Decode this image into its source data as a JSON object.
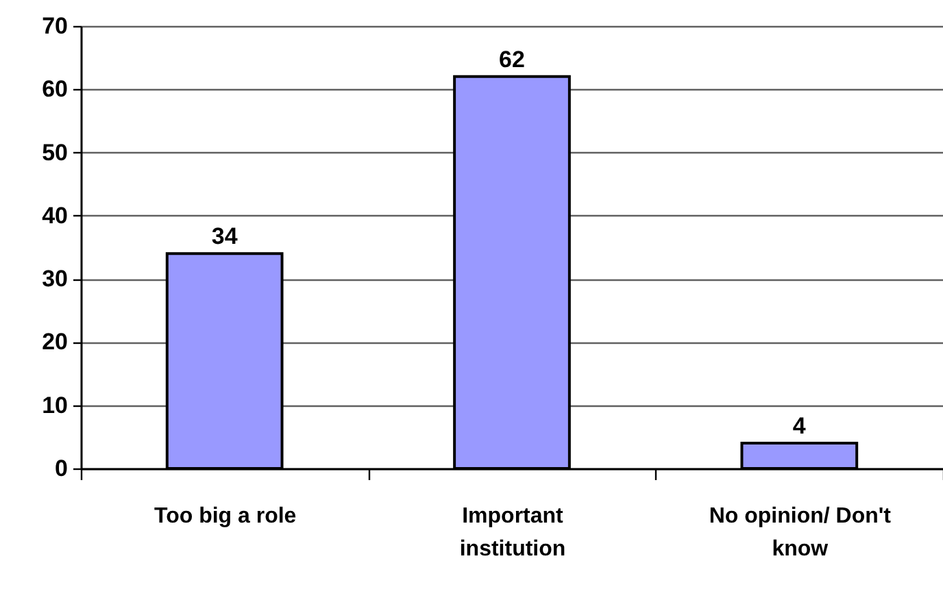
{
  "chart_data": {
    "type": "bar",
    "categories": [
      "Too big a role",
      "Important institution",
      "No opinion/ Don't know"
    ],
    "values": [
      34,
      62,
      4
    ],
    "color": "#9999ff",
    "ylim": [
      0,
      70
    ],
    "yticks": [
      0,
      10,
      20,
      30,
      40,
      50,
      60,
      70
    ],
    "grid": "y",
    "data_labels": true
  }
}
